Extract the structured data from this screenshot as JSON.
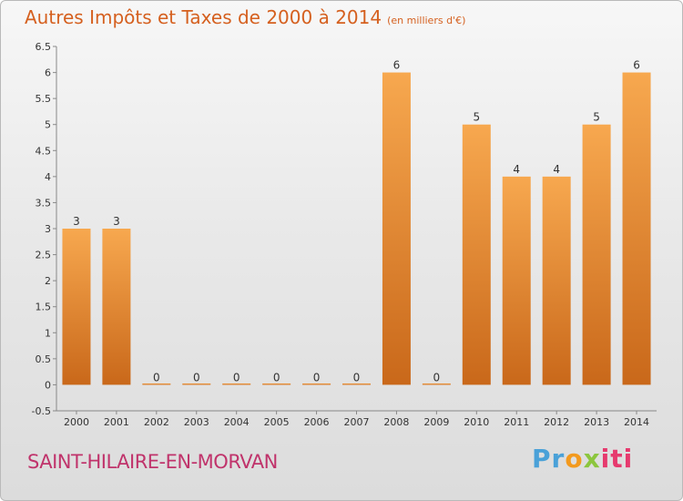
{
  "title": "Autres Impôts et Taxes de 2000 à 2014",
  "unit": "(en milliers d'€)",
  "commune": "SAINT-HILAIRE-EN-MORVAN",
  "logo": {
    "p1": "Pr",
    "p2": "o",
    "p3": "x",
    "p4": "iti"
  },
  "colors": {
    "bar_light": "#f7a84f",
    "bar_dark": "#c9681a",
    "title": "#d5601f",
    "commune": "#c0336b"
  },
  "chart_data": {
    "type": "bar",
    "title": "Autres Impôts et Taxes de 2000 à 2014",
    "categories": [
      "2000",
      "2001",
      "2002",
      "2003",
      "2004",
      "2005",
      "2006",
      "2007",
      "2008",
      "2009",
      "2010",
      "2011",
      "2012",
      "2013",
      "2014"
    ],
    "values": [
      3,
      3,
      0,
      0,
      0,
      0,
      0,
      0,
      6,
      0,
      5,
      4,
      4,
      5,
      6
    ],
    "ylim": [
      -0.5,
      6.5
    ],
    "yticks": [
      "-0.5",
      "0",
      "0.5",
      "1",
      "1.5",
      "2",
      "2.5",
      "3",
      "3.5",
      "4",
      "4.5",
      "5",
      "5.5",
      "6",
      "6.5"
    ],
    "grid": false
  }
}
